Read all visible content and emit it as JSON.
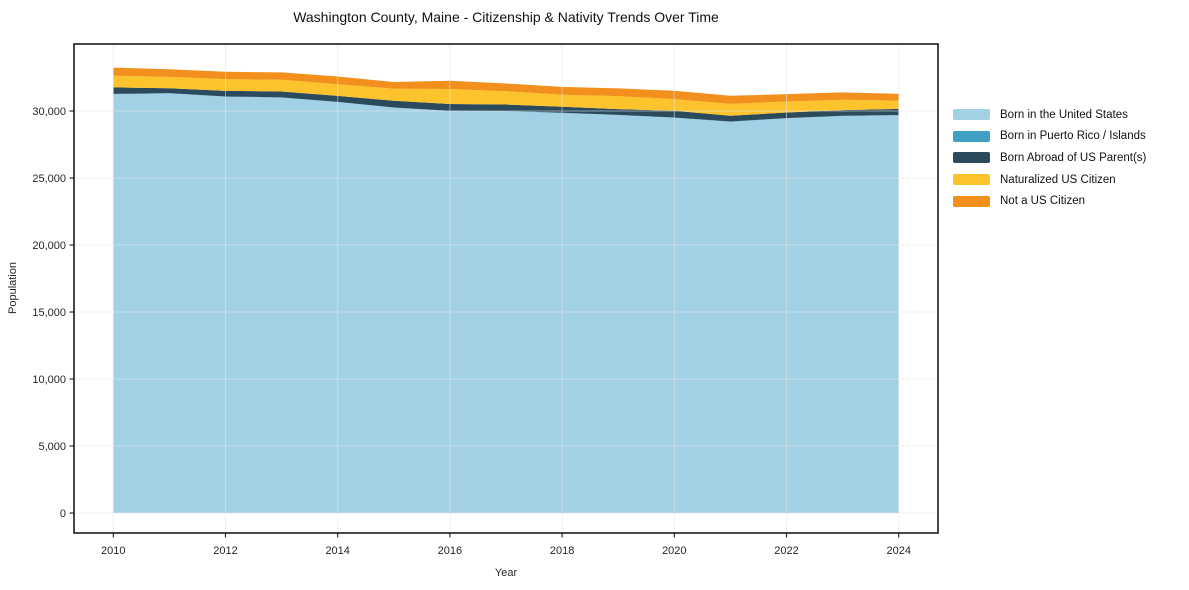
{
  "chart_data": {
    "type": "area",
    "stacked": true,
    "title": "Washington County, Maine - Citizenship & Nativity Trends Over Time",
    "xlabel": "Year",
    "ylabel": "Population",
    "x": [
      2010,
      2011,
      2012,
      2013,
      2014,
      2015,
      2016,
      2017,
      2018,
      2019,
      2020,
      2021,
      2022,
      2023,
      2024
    ],
    "series": [
      {
        "id": "born-in-us",
        "name": "Born in the United States",
        "color": "#a2d1e6",
        "values": [
          31250,
          31320,
          31070,
          31000,
          30670,
          30250,
          30000,
          29980,
          29850,
          29700,
          29500,
          29200,
          29460,
          29630,
          29680
        ]
      },
      {
        "id": "born-puerto-rico-islands",
        "name": "Born in Puerto Rico / Islands",
        "color": "#3fa0c3",
        "values": [
          25,
          10,
          15,
          20,
          10,
          15,
          20,
          25,
          15,
          10,
          20,
          15,
          10,
          20,
          25
        ]
      },
      {
        "id": "born-abroad-us-parents",
        "name": "Born Abroad of US Parent(s)",
        "color": "#2b4a5c",
        "values": [
          490,
          370,
          420,
          440,
          450,
          500,
          500,
          480,
          450,
          430,
          500,
          430,
          420,
          420,
          450
        ]
      },
      {
        "id": "naturalized-citizen",
        "name": "Naturalized US Citizen",
        "color": "#fcc32d",
        "values": [
          870,
          850,
          870,
          870,
          870,
          900,
          1120,
          990,
          900,
          970,
          870,
          890,
          820,
          770,
          620
        ]
      },
      {
        "id": "not-us-citizen",
        "name": "Not a US Citizen",
        "color": "#f3901d",
        "values": [
          600,
          570,
          550,
          550,
          570,
          500,
          620,
          580,
          590,
          580,
          620,
          600,
          550,
          550,
          500
        ]
      }
    ],
    "xlim": [
      2009.3,
      2024.7
    ],
    "ylim": [
      -1490,
      35000
    ],
    "xticks": [
      2010,
      2012,
      2014,
      2016,
      2018,
      2020,
      2022,
      2024
    ],
    "yticks": [
      0,
      5000,
      10000,
      15000,
      20000,
      25000,
      30000
    ],
    "ytick_format": "comma",
    "grid": true,
    "legend_position": "right-outside",
    "axis_color": "#1a1a1a",
    "tick_label_color": "#262626",
    "grid_color": "#e3e3e3"
  }
}
